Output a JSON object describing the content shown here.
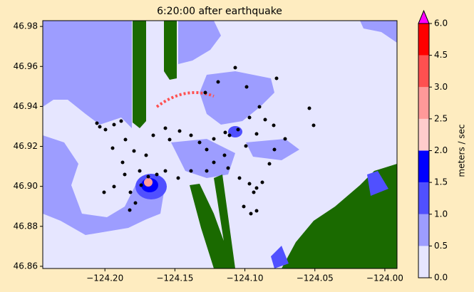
{
  "map": {
    "title": "6:20:00 after earthquake",
    "xlim": [
      -124.2444,
      -123.9913
    ],
    "ylim": [
      46.8589,
      46.9829
    ],
    "xticks": [
      {
        "value": -124.2,
        "label": "−124.20"
      },
      {
        "value": -124.15,
        "label": "−124.15"
      },
      {
        "value": -124.1,
        "label": "−124.10"
      },
      {
        "value": -124.05,
        "label": "−124.05"
      },
      {
        "value": -124.0,
        "label": "−124.00"
      }
    ],
    "yticks": [
      {
        "value": 46.86,
        "label": "46.86"
      },
      {
        "value": 46.88,
        "label": "46.88"
      },
      {
        "value": 46.9,
        "label": "46.90"
      },
      {
        "value": 46.92,
        "label": "46.92"
      },
      {
        "value": 46.94,
        "label": "46.94"
      },
      {
        "value": 46.96,
        "label": "46.96"
      },
      {
        "value": 46.98,
        "label": "46.98"
      }
    ],
    "colorbar": {
      "label": "meters / sec",
      "ticks": [
        {
          "value": 0,
          "label": "0.0"
        },
        0.5,
        {
          "value": 1,
          "label": "1.0"
        },
        1.5,
        {
          "value": 2,
          "label": "2.0"
        },
        2.5,
        {
          "value": 3,
          "label": "3.0"
        },
        4.5,
        {
          "value": 6,
          "label": "6.0"
        }
      ],
      "colors": [
        "#e6e6ff",
        "#9d9dff",
        "#5050ff",
        "#0000ff",
        "#ffcccc",
        "#ff9999",
        "#ff5050",
        "#ff0000"
      ],
      "extend_color": "#ff00ff"
    }
  }
}
